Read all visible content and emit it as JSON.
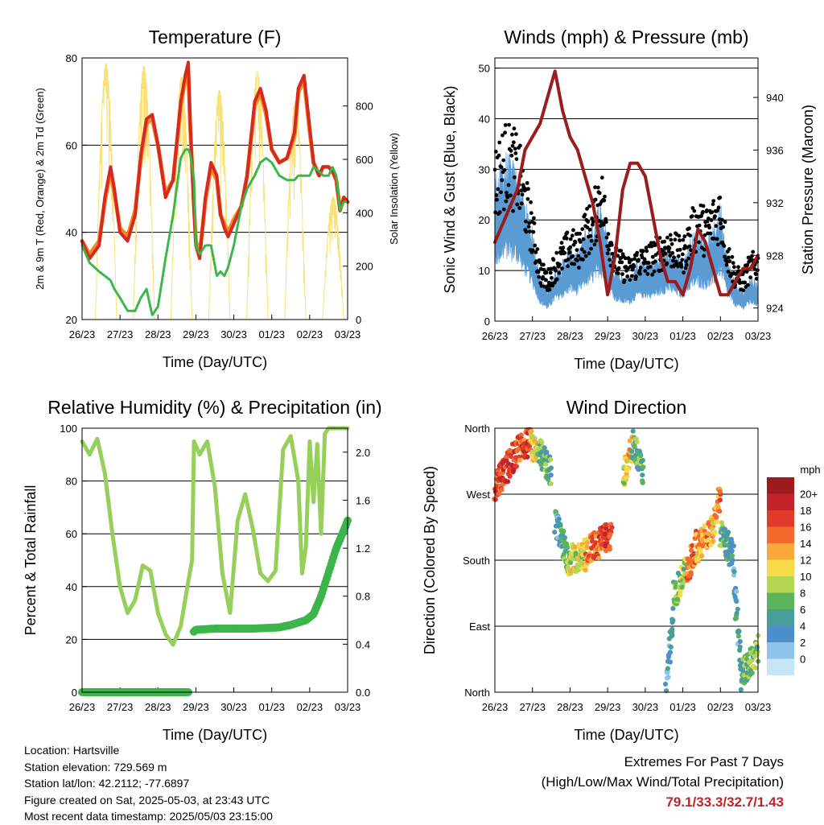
{
  "x_ticks": [
    "26/23",
    "27/23",
    "28/23",
    "29/23",
    "30/23",
    "01/23",
    "02/23",
    "03/23"
  ],
  "colors": {
    "t2m": "#d62a20",
    "t9m": "#f28a24",
    "td": "#3cb54a",
    "solar": "#f7e27a",
    "wind": "#5a9bd4",
    "gust": "#000000",
    "pressure": "#9b1c1c",
    "rh": "#96d05b",
    "precip": "#3cb54a"
  },
  "panels": {
    "temperature": {
      "title": "Temperature (F)",
      "xlabel": "Time (Day/UTC)",
      "ylabel_left": "2m & 9m T (Red, Orange) & 2m Td (Green)",
      "ylabel_right": "Solar Insolation (Yellow)"
    },
    "winds": {
      "title": "Winds (mph) & Pressure (mb)",
      "xlabel": "Time (Day/UTC)",
      "ylabel_left": "Sonic Wind & Gust (Blue, Black)",
      "ylabel_right": "Station Pressure (Maroon)"
    },
    "humidity": {
      "title": "Relative Humidity (%) & Precipitation (in)",
      "xlabel": "Time (Day/UTC)",
      "ylabel_left": "Percent & Total Rainfall"
    },
    "direction": {
      "title": "Wind Direction",
      "xlabel": "Time (Day/UTC)",
      "ylabel_left": "Direction (Colored By Speed)"
    }
  },
  "legend": {
    "title": "mph",
    "labels": [
      "20+",
      "18",
      "16",
      "14",
      "12",
      "10",
      "8",
      "6",
      "4",
      "2",
      "0"
    ],
    "colors": [
      "#9b1b1e",
      "#c0242a",
      "#e03a2b",
      "#f26a2d",
      "#f9a83b",
      "#f7da4a",
      "#b5d651",
      "#5bb45c",
      "#4a9e9a",
      "#4d8fcb",
      "#8fc4ea",
      "#c6e6f6"
    ]
  },
  "info": {
    "location": "Location: Hartsville",
    "elevation": "Station elevation: 729.569 m",
    "latlon": "Station lat/lon: 42.2112; -77.6897",
    "created": "Figure created on Sat, 2025-05-03, at 23:43 UTC",
    "recent": "Most recent data timestamp: 2025/05/03 23:15:00"
  },
  "extremes": {
    "line1": "Extremes For Past 7 Days",
    "line2": "(High/Low/Max Wind/Total Precipitation)",
    "value": "79.1/33.3/32.7/1.43"
  },
  "chart_data": [
    {
      "type": "line",
      "title": "Temperature (F)",
      "xlabel": "Time (Day/UTC)",
      "ylabel": "2m & 9m T (Red, Orange) & 2m Td (Green)",
      "y2label": "Solar Insolation (Yellow)",
      "x_ticks": [
        "26/23",
        "27/23",
        "28/23",
        "29/23",
        "30/23",
        "01/23",
        "02/23",
        "03/23"
      ],
      "ylim": [
        20,
        80
      ],
      "y_ticks": [
        20,
        40,
        60,
        80
      ],
      "y2lim": [
        0,
        980
      ],
      "y2_ticks": [
        0,
        200,
        400,
        600,
        800
      ],
      "x_days": [
        0,
        0.2,
        0.45,
        0.6,
        0.75,
        0.85,
        1.0,
        1.2,
        1.4,
        1.55,
        1.7,
        1.85,
        2.0,
        2.2,
        2.4,
        2.6,
        2.72,
        2.8,
        2.85,
        2.95,
        3.0,
        3.1,
        3.25,
        3.4,
        3.55,
        3.65,
        3.75,
        3.85,
        4.0,
        4.2,
        4.35,
        4.55,
        4.7,
        4.85,
        5.0,
        5.2,
        5.4,
        5.6,
        5.7,
        5.85,
        6.0,
        6.1,
        6.25,
        6.35,
        6.5,
        6.6,
        6.7,
        6.8,
        6.9,
        7.0
      ],
      "series": [
        {
          "name": "2m T",
          "role": "t2m",
          "values": [
            38,
            34,
            37,
            48,
            55,
            50,
            40,
            38,
            44,
            58,
            66,
            67,
            60,
            48,
            52,
            70,
            76,
            79,
            65,
            45,
            37,
            34,
            48,
            56,
            53,
            44,
            41,
            39,
            42,
            46,
            53,
            70,
            73,
            68,
            59,
            56,
            57,
            63,
            73,
            76,
            64,
            56,
            53,
            55,
            55,
            54,
            52,
            45,
            48,
            47
          ]
        },
        {
          "name": "9m T",
          "role": "t9m",
          "values": [
            38,
            35,
            38,
            47,
            54,
            49,
            41,
            39,
            45,
            57,
            65,
            66,
            60,
            49,
            52,
            69,
            75,
            77,
            64,
            46,
            38,
            35,
            47,
            55,
            52,
            44,
            42,
            40,
            43,
            46,
            53,
            69,
            72,
            67,
            59,
            56,
            57,
            62,
            72,
            75,
            63,
            56,
            53,
            55,
            55,
            54,
            52,
            45,
            48,
            47
          ]
        },
        {
          "name": "2m Td",
          "role": "td",
          "values": [
            37,
            33,
            31,
            30,
            29,
            27,
            25,
            22,
            22,
            25,
            27,
            21,
            23,
            34,
            44,
            57,
            59,
            59,
            58,
            52,
            37,
            35,
            37,
            37,
            30,
            31,
            30,
            32,
            37,
            46,
            50,
            53,
            56,
            57,
            56,
            53,
            52,
            52,
            53,
            53,
            53,
            55,
            54,
            53,
            53,
            55,
            53,
            45,
            47,
            47
          ]
        }
      ],
      "solar": {
        "peaks": [
          {
            "day": 0.63,
            "value": 960
          },
          {
            "day": 1.63,
            "value": 950
          },
          {
            "day": 2.62,
            "value": 910
          },
          {
            "day": 3.62,
            "value": 860
          },
          {
            "day": 4.62,
            "value": 930
          },
          {
            "day": 5.62,
            "value": 820
          },
          {
            "day": 6.62,
            "value": 460
          }
        ]
      }
    },
    {
      "type": "line",
      "title": "Winds (mph) & Pressure (mb)",
      "xlabel": "Time (Day/UTC)",
      "ylabel": "Sonic Wind & Gust (Blue, Black)",
      "y2label": "Station Pressure (Maroon)",
      "x_ticks": [
        "26/23",
        "27/23",
        "28/23",
        "29/23",
        "30/23",
        "01/23",
        "02/23",
        "03/23"
      ],
      "ylim": [
        0,
        52
      ],
      "y_ticks": [
        0,
        10,
        20,
        30,
        40,
        50
      ],
      "y2lim": [
        923,
        943
      ],
      "y2_ticks": [
        924,
        928,
        932,
        936,
        940
      ],
      "x_days": [
        0,
        0.3,
        0.6,
        0.8,
        1.0,
        1.2,
        1.4,
        1.6,
        1.8,
        2.0,
        2.2,
        2.4,
        2.6,
        2.8,
        3.0,
        3.2,
        3.4,
        3.6,
        3.8,
        4.0,
        4.2,
        4.4,
        4.6,
        4.8,
        5.0,
        5.2,
        5.4,
        5.6,
        5.8,
        6.0,
        6.2,
        6.4,
        6.6,
        6.8,
        7.0
      ],
      "series": [
        {
          "name": "Wind",
          "role": "wind",
          "values": [
            19,
            22,
            20,
            16,
            12,
            6,
            4,
            7,
            8,
            10,
            9,
            12,
            13,
            16,
            11,
            7,
            6,
            6,
            8,
            8,
            8,
            9,
            10,
            9,
            8,
            11,
            12,
            11,
            12,
            16,
            8,
            5,
            4,
            6,
            5
          ]
        },
        {
          "name": "Gust",
          "role": "gust",
          "values": [
            28,
            32,
            30,
            24,
            18,
            10,
            8,
            11,
            13,
            15,
            14,
            18,
            19,
            26,
            18,
            12,
            11,
            10,
            12,
            12,
            13,
            14,
            15,
            14,
            13,
            17,
            20,
            18,
            20,
            22,
            13,
            9,
            8,
            11,
            11
          ]
        },
        {
          "name": "Pressure",
          "role": "pressure",
          "values": [
            929,
            931,
            933,
            936,
            937,
            938,
            940,
            942,
            939,
            937,
            936,
            934,
            932,
            929,
            925,
            928,
            933,
            935,
            935,
            934,
            931,
            928,
            926,
            926,
            925,
            927,
            930,
            929,
            927,
            925,
            925,
            926,
            927,
            927,
            928
          ]
        }
      ]
    },
    {
      "type": "line",
      "title": "Relative Humidity (%) & Precipitation (in)",
      "xlabel": "Time (Day/UTC)",
      "ylabel": "Percent & Total Rainfall",
      "x_ticks": [
        "26/23",
        "27/23",
        "28/23",
        "29/23",
        "30/23",
        "01/23",
        "02/23",
        "03/23"
      ],
      "ylim": [
        0,
        100
      ],
      "y_ticks": [
        0,
        20,
        40,
        60,
        80,
        100
      ],
      "y2lim": [
        0,
        2.2
      ],
      "y2_ticks": [
        0.0,
        0.4,
        0.8,
        1.2,
        1.6,
        2.0
      ],
      "x_days": [
        0,
        0.2,
        0.4,
        0.6,
        0.8,
        1.0,
        1.2,
        1.4,
        1.6,
        1.8,
        2.0,
        2.2,
        2.4,
        2.6,
        2.8,
        2.9,
        2.95,
        3.1,
        3.3,
        3.5,
        3.7,
        3.9,
        4.1,
        4.3,
        4.5,
        4.7,
        4.9,
        5.1,
        5.3,
        5.5,
        5.7,
        5.8,
        5.9,
        6.0,
        6.1,
        6.2,
        6.3,
        6.4,
        6.5,
        6.7,
        7.0
      ],
      "series": [
        {
          "name": "RH",
          "role": "rh",
          "values": [
            95,
            90,
            96,
            83,
            60,
            40,
            30,
            35,
            48,
            46,
            30,
            22,
            18,
            25,
            42,
            50,
            95,
            90,
            95,
            78,
            45,
            30,
            65,
            75,
            62,
            45,
            42,
            46,
            92,
            97,
            80,
            45,
            55,
            95,
            72,
            94,
            60,
            98,
            100,
            100,
            100
          ]
        },
        {
          "name": "Precipitation",
          "role": "precip",
          "y_axis": "right",
          "x_days": [
            0,
            2.8,
            2.92,
            2.93,
            3.0,
            3.5,
            4.5,
            5.2,
            5.5,
            5.7,
            5.9,
            6.1,
            6.3,
            6.5,
            6.7,
            6.9,
            7.0
          ],
          "values": [
            0.0,
            0.0,
            0.02,
            0.5,
            0.52,
            0.53,
            0.53,
            0.54,
            0.56,
            0.58,
            0.6,
            0.65,
            0.8,
            1.0,
            1.2,
            1.35,
            1.43
          ]
        }
      ]
    },
    {
      "type": "scatter",
      "title": "Wind Direction",
      "xlabel": "Time (Day/UTC)",
      "ylabel": "Direction (Colored By Speed)",
      "x_ticks": [
        "26/23",
        "27/23",
        "28/23",
        "29/23",
        "30/23",
        "01/23",
        "02/23",
        "03/23"
      ],
      "y_ticks": [
        "North",
        "East",
        "South",
        "West",
        "North"
      ],
      "ylim": [
        0,
        360
      ],
      "colorbar": {
        "label": "mph",
        "levels": [
          "20+",
          "18",
          "16",
          "14",
          "12",
          "10",
          "8",
          "6",
          "4",
          "2",
          "0"
        ]
      },
      "segments": [
        {
          "x0": 0.0,
          "x1": 0.55,
          "d0": 280,
          "d1": 325,
          "s0": 17,
          "s1": 19
        },
        {
          "x0": 0.55,
          "x1": 0.95,
          "d0": 325,
          "d1": 345,
          "s0": 16,
          "s1": 18
        },
        {
          "x0": 0.95,
          "x1": 1.15,
          "d0": 340,
          "d1": 320,
          "s0": 13,
          "s1": 11
        },
        {
          "x0": 1.15,
          "x1": 1.5,
          "d0": 330,
          "d1": 300,
          "s0": 8,
          "s1": 7
        },
        {
          "x0": 1.6,
          "x1": 1.9,
          "d0": 230,
          "d1": 190,
          "s0": 5,
          "s1": 8
        },
        {
          "x0": 1.9,
          "x1": 2.4,
          "d0": 180,
          "d1": 185,
          "s0": 10,
          "s1": 12
        },
        {
          "x0": 2.4,
          "x1": 3.1,
          "d0": 190,
          "d1": 215,
          "s0": 15,
          "s1": 18
        },
        {
          "x0": 3.4,
          "x1": 3.65,
          "d0": 295,
          "d1": 330,
          "s0": 10,
          "s1": 14
        },
        {
          "x0": 3.65,
          "x1": 3.95,
          "d0": 340,
          "d1": 300,
          "s0": 8,
          "s1": 6
        },
        {
          "x0": 4.55,
          "x1": 4.75,
          "d0": 10,
          "d1": 100,
          "s0": 3,
          "s1": 6
        },
        {
          "x0": 4.75,
          "x1": 5.1,
          "d0": 130,
          "d1": 170,
          "s0": 8,
          "s1": 10
        },
        {
          "x0": 5.1,
          "x1": 5.35,
          "d0": 160,
          "d1": 200,
          "s0": 17,
          "s1": 16
        },
        {
          "x0": 5.35,
          "x1": 5.8,
          "d0": 195,
          "d1": 225,
          "s0": 13,
          "s1": 15
        },
        {
          "x0": 5.8,
          "x1": 6.0,
          "d0": 230,
          "d1": 270,
          "s0": 12,
          "s1": 16
        },
        {
          "x0": 6.0,
          "x1": 6.35,
          "d0": 215,
          "d1": 185,
          "s0": 8,
          "s1": 5
        },
        {
          "x0": 6.35,
          "x1": 6.55,
          "d0": 160,
          "d1": 40,
          "s0": 4,
          "s1": 6
        },
        {
          "x0": 6.55,
          "x1": 7.0,
          "d0": 20,
          "d1": 60,
          "s0": 7,
          "s1": 9
        }
      ]
    }
  ]
}
